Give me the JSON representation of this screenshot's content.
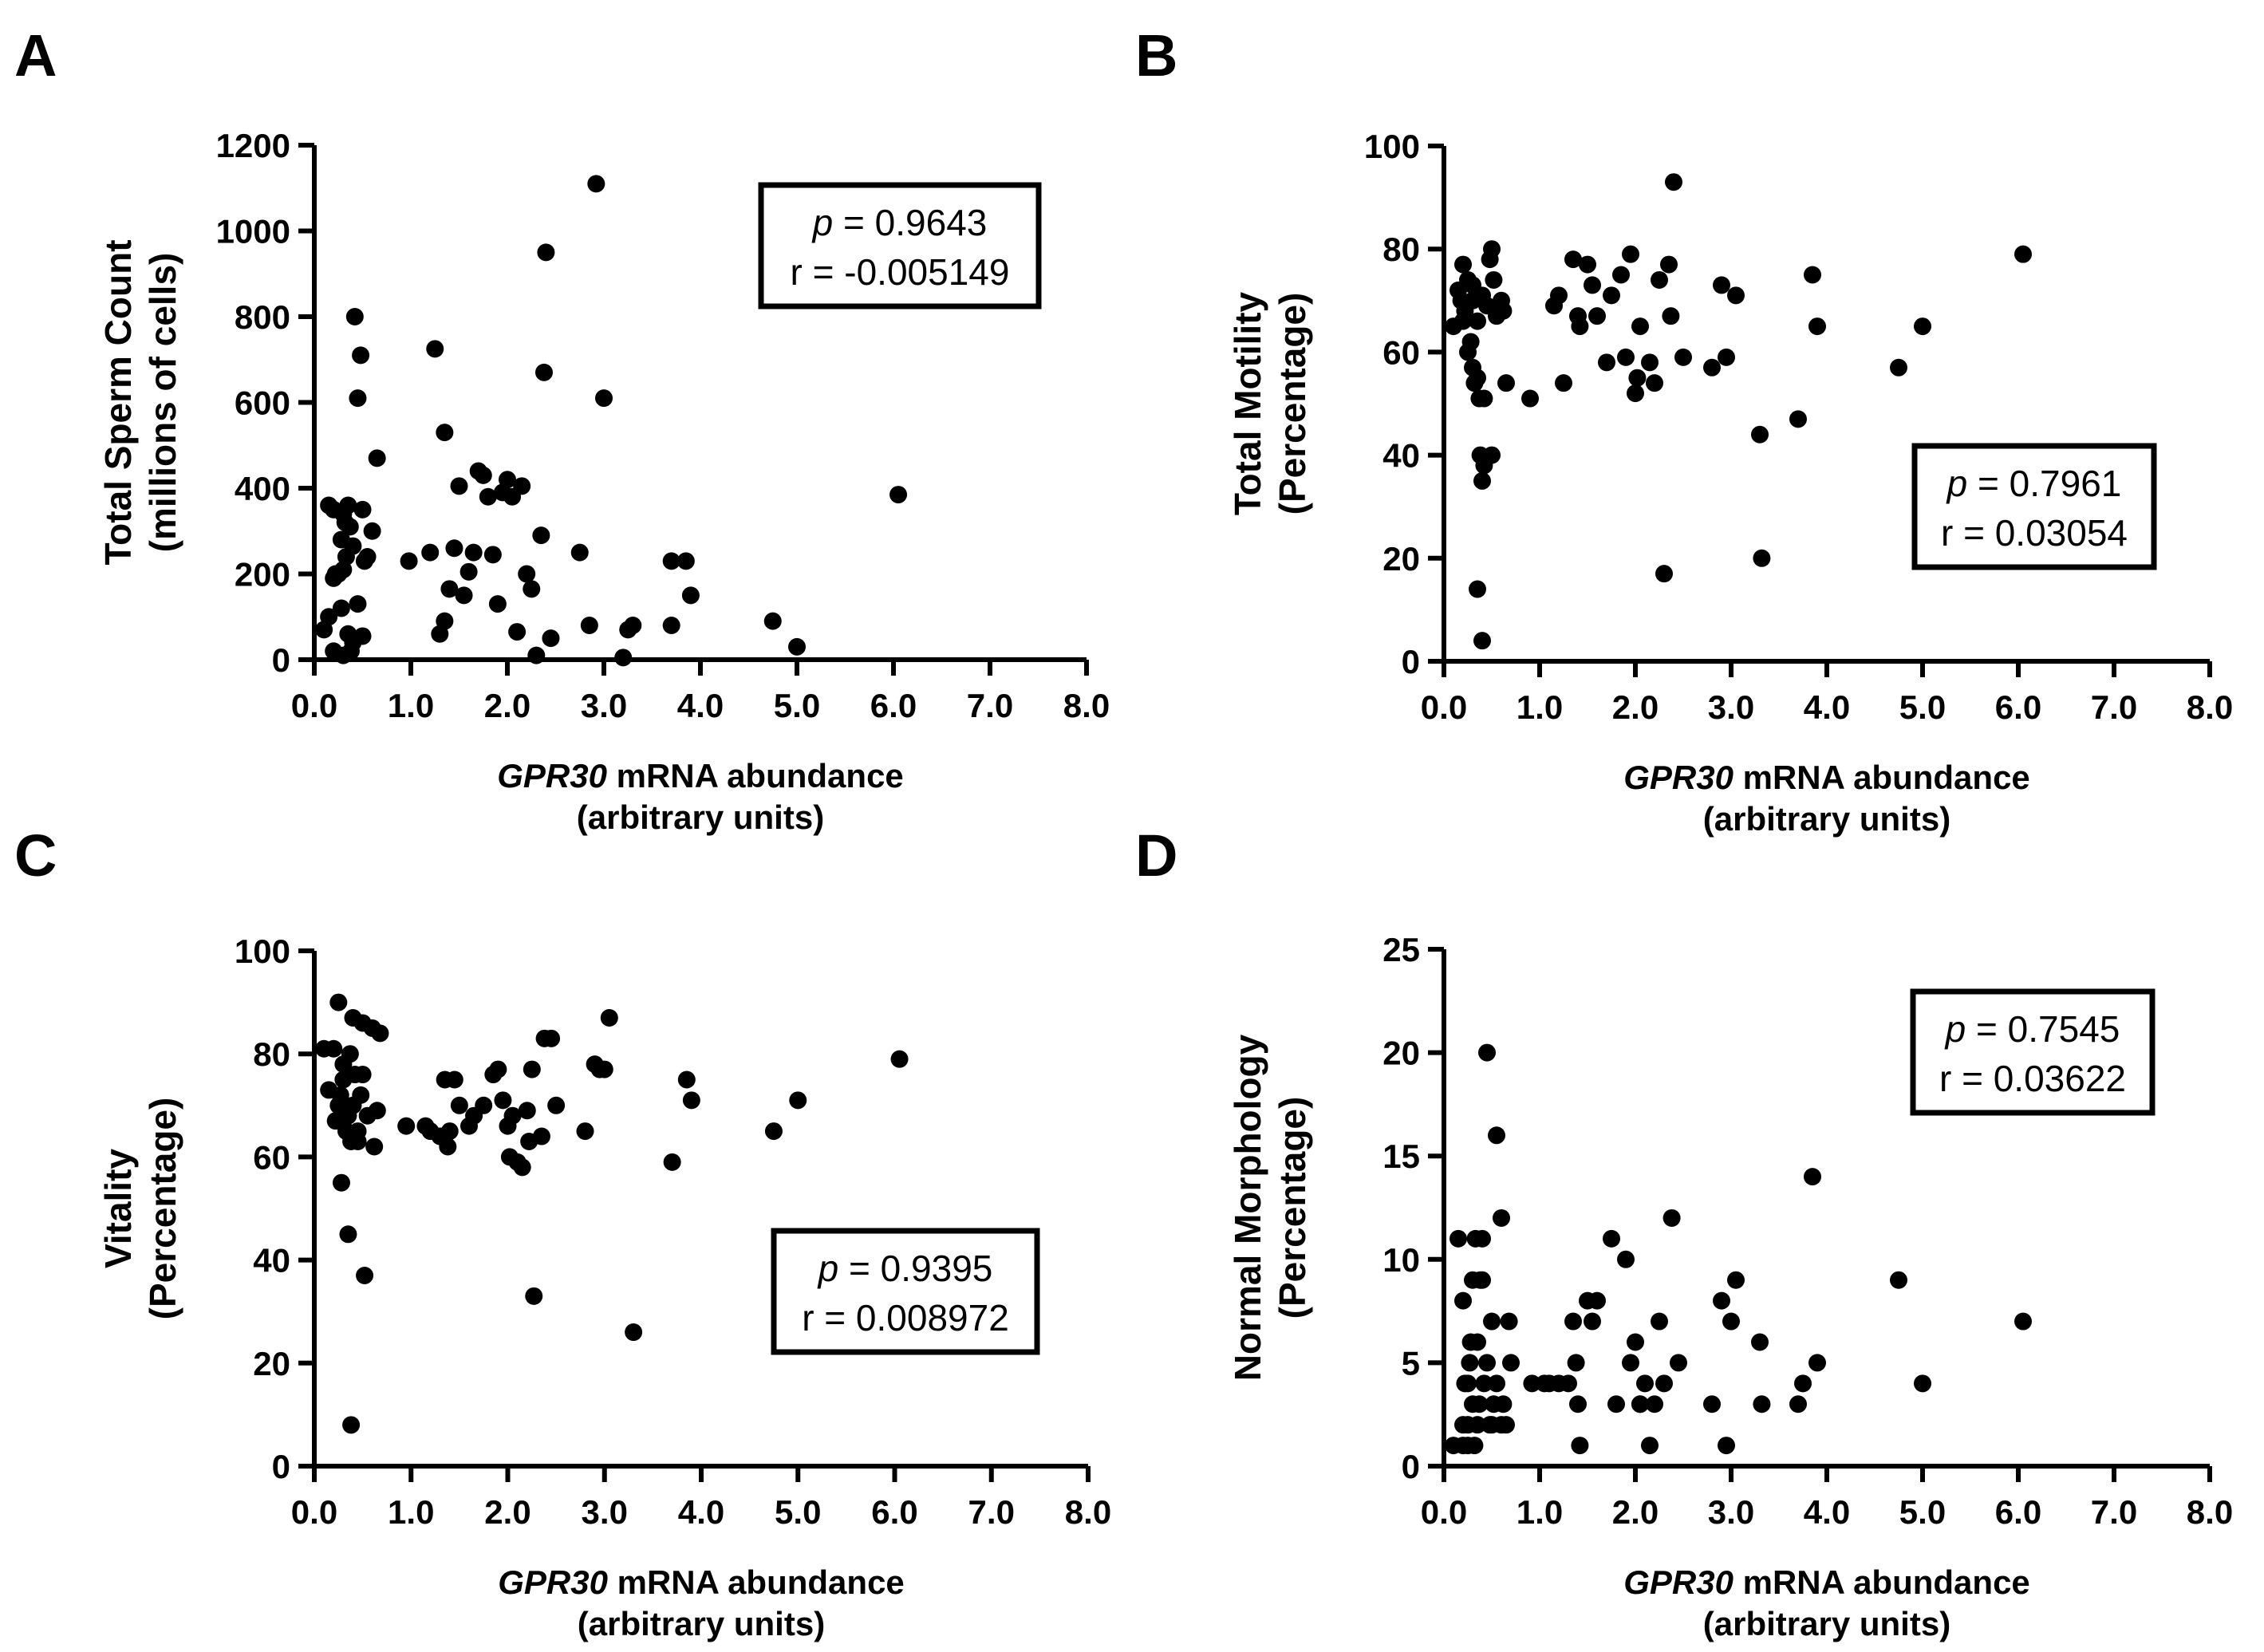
{
  "chart_data": [
    {
      "type": "scatter",
      "panel_label": "A",
      "xlabel_gene": "GPR30",
      "xlabel_rest": " mRNA abundance",
      "xlabel_line2": "(arbitrary units)",
      "ylabel_line1": "Total Sperm Count",
      "ylabel_line2": "(millions of cells)",
      "xlim": [
        0,
        8
      ],
      "ylim": [
        0,
        1200
      ],
      "xticks": [
        "0.0",
        "1.0",
        "2.0",
        "3.0",
        "4.0",
        "5.0",
        "6.0",
        "7.0",
        "8.0"
      ],
      "yticks": [
        "0",
        "200",
        "400",
        "600",
        "800",
        "1000",
        "1200"
      ],
      "stats": {
        "p_label": "p",
        "p_value": " = 0.9643",
        "r_text": "r = -0.005149"
      },
      "points": [
        [
          0.15,
          360
        ],
        [
          0.2,
          350
        ],
        [
          0.25,
          200
        ],
        [
          0.28,
          280
        ],
        [
          0.3,
          340
        ],
        [
          0.32,
          320
        ],
        [
          0.35,
          360
        ],
        [
          0.37,
          310
        ],
        [
          0.4,
          265
        ],
        [
          0.42,
          800
        ],
        [
          0.45,
          610
        ],
        [
          0.48,
          710
        ],
        [
          0.5,
          350
        ],
        [
          0.52,
          230
        ],
        [
          0.55,
          240
        ],
        [
          0.6,
          300
        ],
        [
          0.65,
          470
        ],
        [
          0.1,
          70
        ],
        [
          0.15,
          100
        ],
        [
          0.2,
          190
        ],
        [
          0.22,
          200
        ],
        [
          0.25,
          200
        ],
        [
          0.28,
          120
        ],
        [
          0.3,
          210
        ],
        [
          0.33,
          240
        ],
        [
          0.35,
          60
        ],
        [
          0.38,
          20
        ],
        [
          0.4,
          40
        ],
        [
          0.45,
          130
        ],
        [
          0.5,
          55
        ],
        [
          0.3,
          10
        ],
        [
          0.2,
          20
        ],
        [
          0.98,
          230
        ],
        [
          1.2,
          250
        ],
        [
          1.25,
          725
        ],
        [
          1.3,
          60
        ],
        [
          1.35,
          530
        ],
        [
          1.4,
          165
        ],
        [
          1.45,
          260
        ],
        [
          1.5,
          405
        ],
        [
          1.55,
          150
        ],
        [
          1.6,
          205
        ],
        [
          1.65,
          250
        ],
        [
          1.7,
          440
        ],
        [
          1.75,
          430
        ],
        [
          1.8,
          380
        ],
        [
          1.85,
          245
        ],
        [
          1.9,
          130
        ],
        [
          1.95,
          390
        ],
        [
          2.0,
          420
        ],
        [
          2.05,
          380
        ],
        [
          2.1,
          65
        ],
        [
          2.15,
          405
        ],
        [
          2.2,
          200
        ],
        [
          2.25,
          165
        ],
        [
          2.3,
          10
        ],
        [
          2.35,
          290
        ],
        [
          2.38,
          670
        ],
        [
          2.4,
          950
        ],
        [
          2.45,
          50
        ],
        [
          2.75,
          250
        ],
        [
          2.85,
          80
        ],
        [
          2.92,
          1110
        ],
        [
          3.0,
          610
        ],
        [
          3.25,
          70
        ],
        [
          3.3,
          80
        ],
        [
          3.2,
          5
        ],
        [
          3.7,
          230
        ],
        [
          3.85,
          230
        ],
        [
          3.9,
          150
        ],
        [
          3.7,
          80
        ],
        [
          4.75,
          90
        ],
        [
          5.0,
          30
        ],
        [
          6.05,
          385
        ],
        [
          1.35,
          90
        ]
      ]
    },
    {
      "type": "scatter",
      "panel_label": "B",
      "xlabel_gene": "GPR30",
      "xlabel_rest": " mRNA abundance",
      "xlabel_line2": "(arbitrary units)",
      "ylabel_line1": "Total Motility",
      "ylabel_line2": "(Percentage)",
      "xlim": [
        0,
        8
      ],
      "ylim": [
        0,
        100
      ],
      "xticks": [
        "0.0",
        "1.0",
        "2.0",
        "3.0",
        "4.0",
        "5.0",
        "6.0",
        "7.0",
        "8.0"
      ],
      "yticks": [
        "0",
        "20",
        "40",
        "60",
        "80",
        "100"
      ],
      "stats": {
        "p_label": "p",
        "p_value": " = 0.7961",
        "r_text": "r = 0.03054"
      },
      "points": [
        [
          0.1,
          65
        ],
        [
          0.15,
          72
        ],
        [
          0.18,
          70
        ],
        [
          0.2,
          77
        ],
        [
          0.22,
          68
        ],
        [
          0.25,
          74
        ],
        [
          0.28,
          62
        ],
        [
          0.3,
          57
        ],
        [
          0.32,
          54
        ],
        [
          0.35,
          66
        ],
        [
          0.37,
          51
        ],
        [
          0.4,
          71
        ],
        [
          0.42,
          51
        ],
        [
          0.45,
          69
        ],
        [
          0.48,
          78
        ],
        [
          0.5,
          80
        ],
        [
          0.52,
          74
        ],
        [
          0.55,
          67
        ],
        [
          0.6,
          70
        ],
        [
          0.62,
          68
        ],
        [
          0.65,
          54
        ],
        [
          0.25,
          60
        ],
        [
          0.3,
          73
        ],
        [
          0.35,
          55
        ],
        [
          0.38,
          40
        ],
        [
          0.4,
          35
        ],
        [
          0.42,
          38
        ],
        [
          0.5,
          40
        ],
        [
          0.35,
          14
        ],
        [
          0.4,
          4
        ],
        [
          0.2,
          66
        ],
        [
          0.3,
          70
        ],
        [
          0.9,
          51
        ],
        [
          1.15,
          69
        ],
        [
          1.2,
          71
        ],
        [
          1.25,
          54
        ],
        [
          1.35,
          78
        ],
        [
          1.4,
          67
        ],
        [
          1.42,
          65
        ],
        [
          1.5,
          77
        ],
        [
          1.55,
          73
        ],
        [
          1.6,
          67
        ],
        [
          1.7,
          58
        ],
        [
          1.75,
          71
        ],
        [
          1.85,
          75
        ],
        [
          1.9,
          59
        ],
        [
          1.95,
          79
        ],
        [
          2.0,
          52
        ],
        [
          2.02,
          55
        ],
        [
          2.05,
          65
        ],
        [
          2.15,
          58
        ],
        [
          2.2,
          54
        ],
        [
          2.25,
          74
        ],
        [
          2.3,
          17
        ],
        [
          2.35,
          77
        ],
        [
          2.37,
          67
        ],
        [
          2.4,
          93
        ],
        [
          2.5,
          59
        ],
        [
          2.8,
          57
        ],
        [
          2.9,
          73
        ],
        [
          2.95,
          59
        ],
        [
          3.05,
          71
        ],
        [
          3.3,
          44
        ],
        [
          3.32,
          20
        ],
        [
          3.7,
          47
        ],
        [
          3.85,
          75
        ],
        [
          3.9,
          65
        ],
        [
          4.75,
          57
        ],
        [
          5.0,
          65
        ],
        [
          6.05,
          79
        ]
      ]
    },
    {
      "type": "scatter",
      "panel_label": "C",
      "xlabel_gene": "GPR30",
      "xlabel_rest": " mRNA abundance",
      "xlabel_line2": "(arbitrary units)",
      "ylabel_line1": "Vitality",
      "ylabel_line2": "(Percentage)",
      "xlim": [
        0,
        8
      ],
      "ylim": [
        0,
        100
      ],
      "xticks": [
        "0.0",
        "1.0",
        "2.0",
        "3.0",
        "4.0",
        "5.0",
        "6.0",
        "7.0",
        "8.0"
      ],
      "yticks": [
        "0",
        "20",
        "40",
        "60",
        "80",
        "100"
      ],
      "stats": {
        "p_label": "p",
        "p_value": " = 0.9395",
        "r_text": "r = 0.008972"
      },
      "points": [
        [
          0.1,
          81
        ],
        [
          0.15,
          73
        ],
        [
          0.2,
          81
        ],
        [
          0.22,
          67
        ],
        [
          0.25,
          90
        ],
        [
          0.27,
          72
        ],
        [
          0.28,
          55
        ],
        [
          0.3,
          78
        ],
        [
          0.32,
          70
        ],
        [
          0.33,
          65
        ],
        [
          0.35,
          45
        ],
        [
          0.37,
          80
        ],
        [
          0.38,
          63
        ],
        [
          0.4,
          87
        ],
        [
          0.42,
          76
        ],
        [
          0.45,
          65
        ],
        [
          0.48,
          72
        ],
        [
          0.5,
          86
        ],
        [
          0.52,
          37
        ],
        [
          0.55,
          68
        ],
        [
          0.6,
          85
        ],
        [
          0.62,
          62
        ],
        [
          0.65,
          69
        ],
        [
          0.68,
          84
        ],
        [
          0.3,
          75
        ],
        [
          0.35,
          68
        ],
        [
          0.38,
          8
        ],
        [
          0.4,
          70
        ],
        [
          0.45,
          63
        ],
        [
          0.5,
          76
        ],
        [
          0.25,
          70
        ],
        [
          0.95,
          66
        ],
        [
          1.15,
          66
        ],
        [
          1.2,
          65
        ],
        [
          1.3,
          64
        ],
        [
          1.35,
          75
        ],
        [
          1.38,
          62
        ],
        [
          1.4,
          65
        ],
        [
          1.45,
          75
        ],
        [
          1.5,
          70
        ],
        [
          1.6,
          66
        ],
        [
          1.65,
          68
        ],
        [
          1.75,
          70
        ],
        [
          1.85,
          76
        ],
        [
          1.9,
          77
        ],
        [
          1.95,
          71
        ],
        [
          2.0,
          66
        ],
        [
          2.02,
          60
        ],
        [
          2.05,
          68
        ],
        [
          2.1,
          59
        ],
        [
          2.15,
          58
        ],
        [
          2.2,
          69
        ],
        [
          2.22,
          63
        ],
        [
          2.25,
          77
        ],
        [
          2.27,
          33
        ],
        [
          2.35,
          64
        ],
        [
          2.38,
          83
        ],
        [
          2.45,
          83
        ],
        [
          2.5,
          70
        ],
        [
          2.8,
          65
        ],
        [
          2.9,
          78
        ],
        [
          2.95,
          77
        ],
        [
          3.0,
          77
        ],
        [
          3.05,
          87
        ],
        [
          3.3,
          26
        ],
        [
          3.7,
          59
        ],
        [
          3.85,
          75
        ],
        [
          3.9,
          71
        ],
        [
          4.75,
          65
        ],
        [
          5.0,
          71
        ],
        [
          6.05,
          79
        ]
      ]
    },
    {
      "type": "scatter",
      "panel_label": "D",
      "xlabel_gene": "GPR30",
      "xlabel_rest": " mRNA abundance",
      "xlabel_line2": "(arbitrary units)",
      "ylabel_line1": "Normal Morphology",
      "ylabel_line2": "(Percentage)",
      "xlim": [
        0,
        8
      ],
      "ylim": [
        0,
        25
      ],
      "xticks": [
        "0.0",
        "1.0",
        "2.0",
        "3.0",
        "4.0",
        "5.0",
        "6.0",
        "7.0",
        "8.0"
      ],
      "yticks": [
        "0",
        "5",
        "10",
        "15",
        "20",
        "25"
      ],
      "stats": {
        "p_label": "p",
        "p_value": " = 0.7545",
        "r_text": "r = 0.03622"
      },
      "points": [
        [
          0.1,
          1
        ],
        [
          0.15,
          11
        ],
        [
          0.2,
          8
        ],
        [
          0.22,
          4
        ],
        [
          0.25,
          2
        ],
        [
          0.27,
          5
        ],
        [
          0.28,
          6
        ],
        [
          0.3,
          9
        ],
        [
          0.32,
          1
        ],
        [
          0.33,
          11
        ],
        [
          0.35,
          2
        ],
        [
          0.37,
          3
        ],
        [
          0.38,
          9
        ],
        [
          0.4,
          11
        ],
        [
          0.42,
          4
        ],
        [
          0.45,
          20
        ],
        [
          0.48,
          2
        ],
        [
          0.5,
          7
        ],
        [
          0.52,
          3
        ],
        [
          0.55,
          16
        ],
        [
          0.6,
          12
        ],
        [
          0.62,
          3
        ],
        [
          0.65,
          2
        ],
        [
          0.68,
          7
        ],
        [
          0.7,
          5
        ],
        [
          0.2,
          1
        ],
        [
          0.25,
          4
        ],
        [
          0.3,
          3
        ],
        [
          0.35,
          6
        ],
        [
          0.4,
          9
        ],
        [
          0.45,
          5
        ],
        [
          0.5,
          2
        ],
        [
          0.55,
          4
        ],
        [
          0.6,
          2
        ],
        [
          0.2,
          2
        ],
        [
          0.25,
          1
        ],
        [
          1.2,
          4
        ],
        [
          1.3,
          4
        ],
        [
          1.35,
          7
        ],
        [
          1.38,
          5
        ],
        [
          1.4,
          3
        ],
        [
          1.42,
          1
        ],
        [
          1.5,
          8
        ],
        [
          1.55,
          7
        ],
        [
          1.6,
          8
        ],
        [
          1.75,
          11
        ],
        [
          1.8,
          3
        ],
        [
          1.9,
          10
        ],
        [
          1.95,
          5
        ],
        [
          2.0,
          6
        ],
        [
          2.05,
          3
        ],
        [
          2.1,
          4
        ],
        [
          2.15,
          1
        ],
        [
          2.2,
          3
        ],
        [
          2.25,
          7
        ],
        [
          2.3,
          4
        ],
        [
          2.38,
          12
        ],
        [
          2.45,
          5
        ],
        [
          2.8,
          3
        ],
        [
          2.9,
          8
        ],
        [
          2.95,
          1
        ],
        [
          3.0,
          7
        ],
        [
          3.05,
          9
        ],
        [
          3.3,
          6
        ],
        [
          3.32,
          3
        ],
        [
          3.7,
          3
        ],
        [
          3.75,
          4
        ],
        [
          3.85,
          14
        ],
        [
          3.9,
          5
        ],
        [
          4.75,
          9
        ],
        [
          5.0,
          4
        ],
        [
          6.05,
          7
        ],
        [
          0.92,
          4
        ],
        [
          1.05,
          4
        ],
        [
          1.1,
          4
        ],
        [
          2.05,
          3
        ]
      ]
    }
  ]
}
